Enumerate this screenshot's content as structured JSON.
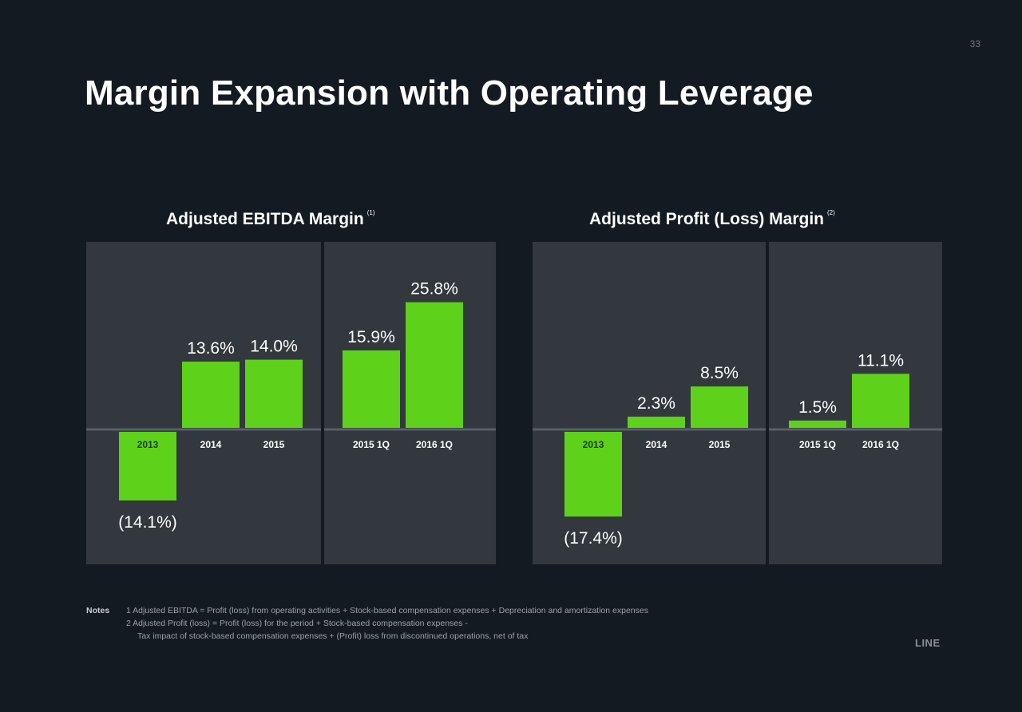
{
  "page_number": "33",
  "title": "Margin Expansion with Operating Leverage",
  "colors": {
    "background": "#141a22",
    "panel": "#33373e",
    "bar": "#5ed11b",
    "baseline": "#5a5f67",
    "text": "#ffffff"
  },
  "chart_data": [
    {
      "type": "bar",
      "title": "Adjusted EBITDA Margin",
      "footnote_ref": "(1)",
      "ylim": [
        -20,
        30
      ],
      "groups": [
        {
          "categories": [
            "2013",
            "2014",
            "2015"
          ],
          "values": [
            -14.1,
            13.6,
            14.0
          ],
          "labels": [
            "(14.1%)",
            "13.6%",
            "14.0%"
          ]
        },
        {
          "categories": [
            "2015 1Q",
            "2016 1Q"
          ],
          "values": [
            15.9,
            25.8
          ],
          "labels": [
            "15.9%",
            "25.8%"
          ]
        }
      ]
    },
    {
      "type": "bar",
      "title": "Adjusted Profit (Loss) Margin",
      "footnote_ref": "(2)",
      "ylim": [
        -20,
        30
      ],
      "groups": [
        {
          "categories": [
            "2013",
            "2014",
            "2015"
          ],
          "values": [
            -17.4,
            2.3,
            8.5
          ],
          "labels": [
            "(17.4%)",
            "2.3%",
            "8.5%"
          ]
        },
        {
          "categories": [
            "2015 1Q",
            "2016 1Q"
          ],
          "values": [
            1.5,
            11.1
          ],
          "labels": [
            "1.5%",
            "11.1%"
          ]
        }
      ]
    }
  ],
  "notes": {
    "label": "Notes",
    "line1": "1  Adjusted EBITDA = Profit (loss) from operating activities + Stock-based compensation expenses + Depreciation and amortization expenses",
    "line2": "2  Adjusted Profit (loss) = Profit (loss) for the period + Stock-based compensation expenses -",
    "line3": "Tax impact of stock-based compensation expenses + (Profit) loss from discontinued operations, net of tax"
  },
  "brand": "LINE"
}
